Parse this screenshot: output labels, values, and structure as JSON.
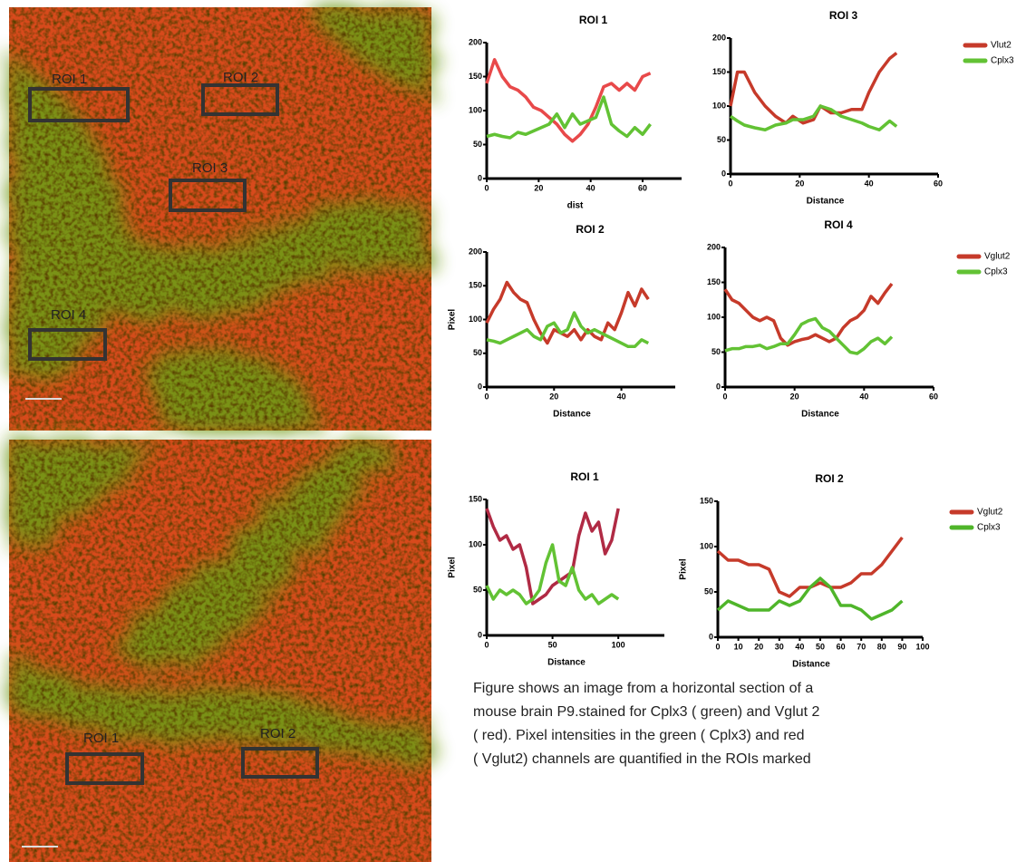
{
  "chart_data": [
    {
      "type": "line",
      "title": "ROI 1",
      "xlabel": "dist",
      "xlim": [
        0,
        75
      ],
      "xticks": [
        0,
        20,
        40,
        60
      ],
      "ylim": [
        0,
        200
      ],
      "yticks": [
        0,
        50,
        100,
        150,
        200
      ],
      "legend": false,
      "x": [
        0,
        3,
        6,
        9,
        12,
        15,
        18,
        21,
        24,
        27,
        30,
        33,
        36,
        39,
        42,
        45,
        48,
        51,
        54,
        57,
        60,
        63
      ],
      "series": [
        {
          "name": "Vlut2",
          "color": "#e8494a",
          "values": [
            140,
            175,
            150,
            135,
            130,
            120,
            105,
            100,
            90,
            80,
            65,
            55,
            65,
            80,
            105,
            135,
            140,
            130,
            140,
            130,
            150,
            155
          ]
        },
        {
          "name": "Cplx3",
          "color": "#62c234",
          "values": [
            62,
            65,
            62,
            60,
            68,
            65,
            70,
            75,
            80,
            95,
            75,
            95,
            80,
            85,
            90,
            120,
            80,
            70,
            62,
            75,
            65,
            80
          ]
        }
      ]
    },
    {
      "type": "line",
      "title": "ROI 3",
      "xlabel": "Distance",
      "xlim": [
        0,
        60
      ],
      "xticks": [
        0,
        20,
        40,
        60
      ],
      "ylim": [
        0,
        200
      ],
      "yticks": [
        0,
        50,
        100,
        150,
        200
      ],
      "legend": "right",
      "x": [
        0,
        2,
        4,
        7,
        10,
        13,
        16,
        18,
        21,
        24,
        26,
        29,
        32,
        35,
        38,
        40,
        43,
        46,
        48
      ],
      "series": [
        {
          "name": "Vlut2",
          "color": "#c63a2a",
          "values": [
            100,
            150,
            150,
            120,
            100,
            85,
            75,
            85,
            75,
            80,
            100,
            90,
            90,
            95,
            95,
            120,
            150,
            170,
            178
          ]
        },
        {
          "name": "Cplx3",
          "color": "#62c234",
          "values": [
            85,
            78,
            72,
            68,
            65,
            72,
            75,
            80,
            80,
            85,
            100,
            95,
            85,
            80,
            75,
            70,
            65,
            78,
            70
          ]
        }
      ]
    },
    {
      "type": "line",
      "title": "ROI 2",
      "xlabel": "Distance",
      "ylabel": "Pixel",
      "xlim": [
        0,
        56
      ],
      "xticks": [
        0,
        20,
        40
      ],
      "ylim": [
        0,
        200
      ],
      "yticks": [
        0,
        50,
        100,
        150,
        200
      ],
      "legend": false,
      "x": [
        0,
        2,
        4,
        6,
        8,
        10,
        12,
        14,
        16,
        18,
        20,
        22,
        24,
        26,
        28,
        30,
        32,
        34,
        36,
        38,
        40,
        42,
        44,
        46,
        48
      ],
      "series": [
        {
          "name": "Vglut2",
          "color": "#c63a2a",
          "values": [
            95,
            115,
            130,
            155,
            140,
            130,
            125,
            100,
            80,
            65,
            85,
            80,
            75,
            85,
            70,
            85,
            75,
            70,
            95,
            85,
            110,
            140,
            120,
            145,
            130
          ]
        },
        {
          "name": "Cplx3",
          "color": "#62c234",
          "values": [
            70,
            68,
            65,
            70,
            75,
            80,
            85,
            75,
            70,
            90,
            95,
            80,
            85,
            110,
            90,
            80,
            85,
            80,
            75,
            70,
            65,
            60,
            60,
            70,
            65
          ]
        }
      ]
    },
    {
      "type": "line",
      "title": "ROI 4",
      "xlabel": "Distance",
      "xlim": [
        0,
        60
      ],
      "xticks": [
        0,
        20,
        40,
        60
      ],
      "ylim": [
        0,
        200
      ],
      "yticks": [
        0,
        50,
        100,
        150,
        200
      ],
      "legend": "right",
      "x": [
        0,
        2,
        4,
        6,
        8,
        10,
        12,
        14,
        16,
        18,
        20,
        22,
        24,
        26,
        28,
        30,
        32,
        34,
        36,
        38,
        40,
        42,
        44,
        46,
        48
      ],
      "series": [
        {
          "name": "Vglut2",
          "color": "#c63a2a",
          "values": [
            140,
            125,
            120,
            110,
            100,
            95,
            100,
            95,
            70,
            60,
            65,
            68,
            70,
            75,
            70,
            65,
            70,
            85,
            95,
            100,
            110,
            130,
            120,
            135,
            148
          ]
        },
        {
          "name": "Cplx3",
          "color": "#62c234",
          "values": [
            52,
            55,
            55,
            58,
            58,
            60,
            55,
            58,
            62,
            62,
            75,
            90,
            95,
            98,
            85,
            80,
            70,
            60,
            50,
            48,
            55,
            65,
            70,
            62,
            72
          ]
        }
      ]
    },
    {
      "type": "line",
      "title": "ROI 1",
      "xlabel": "Distance",
      "ylabel": "Pixel",
      "xlim": [
        0,
        135
      ],
      "xticks": [
        0,
        50,
        100
      ],
      "ylim": [
        0,
        150
      ],
      "yticks": [
        0,
        50,
        100,
        150
      ],
      "legend": false,
      "x": [
        0,
        5,
        10,
        15,
        20,
        25,
        30,
        35,
        40,
        45,
        50,
        55,
        60,
        65,
        70,
        75,
        80,
        85,
        90,
        95,
        100
      ],
      "series": [
        {
          "name": "Vglut2",
          "color": "#b02a44",
          "values": [
            140,
            120,
            105,
            110,
            95,
            100,
            75,
            35,
            40,
            45,
            55,
            60,
            65,
            70,
            110,
            135,
            115,
            125,
            90,
            105,
            140
          ]
        },
        {
          "name": "Cplx3",
          "color": "#62c234",
          "values": [
            55,
            40,
            50,
            45,
            50,
            45,
            35,
            40,
            50,
            80,
            100,
            60,
            55,
            75,
            50,
            40,
            45,
            35,
            40,
            45,
            40
          ]
        }
      ]
    },
    {
      "type": "line",
      "title": "ROI 2",
      "xlabel": "Distance",
      "ylabel": "Pixel",
      "xlim": [
        0,
        100
      ],
      "xticks": [
        0,
        10,
        20,
        30,
        40,
        50,
        60,
        70,
        80,
        90,
        100
      ],
      "ylim": [
        0,
        150
      ],
      "yticks": [
        0,
        50,
        100,
        150
      ],
      "legend": "right",
      "x": [
        0,
        5,
        10,
        15,
        20,
        25,
        30,
        35,
        40,
        45,
        50,
        55,
        60,
        65,
        70,
        75,
        80,
        85,
        90
      ],
      "series": [
        {
          "name": "Vglut2",
          "color": "#c63a2a",
          "values": [
            95,
            85,
            85,
            80,
            80,
            75,
            50,
            45,
            55,
            55,
            60,
            55,
            55,
            60,
            70,
            70,
            80,
            95,
            110
          ]
        },
        {
          "name": "Cplx3",
          "color": "#4fb52a",
          "values": [
            30,
            40,
            35,
            30,
            30,
            30,
            40,
            35,
            40,
            55,
            65,
            55,
            35,
            35,
            30,
            20,
            25,
            30,
            40
          ]
        }
      ]
    }
  ],
  "images": [
    {
      "rois": [
        "ROI 1",
        "ROI 2",
        "ROI 3",
        "ROI 4"
      ]
    },
    {
      "rois": [
        "ROI 1",
        "ROI 2"
      ]
    }
  ],
  "caption": [
    "Figure shows an image from a horizontal section of a",
    "mouse brain P9.stained for Cplx3 ( green) and Vglut 2",
    " ( red). Pixel intensities in the green ( Cplx3) and red",
    "( Vglut2) channels are quantified in the ROIs marked"
  ]
}
